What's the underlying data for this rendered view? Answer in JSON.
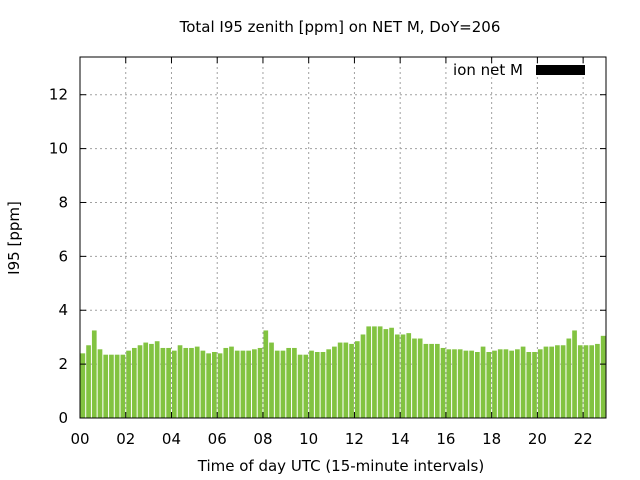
{
  "chart_data": {
    "type": "bar",
    "title": "Total I95 zenith [ppm] on NET M, DoY=206",
    "xlabel": "Time of day UTC (15-minute intervals)",
    "ylabel": "I95 [ppm]",
    "xlim": [
      0,
      22.75
    ],
    "ylim": [
      0,
      13.4
    ],
    "x_ticks": [
      0,
      2,
      4,
      6,
      8,
      10,
      12,
      14,
      16,
      18,
      20,
      22
    ],
    "x_tick_labels": [
      "00",
      "02",
      "04",
      "06",
      "08",
      "10",
      "12",
      "14",
      "16",
      "18",
      "20",
      "22"
    ],
    "y_ticks": [
      0,
      2,
      4,
      6,
      8,
      10,
      12
    ],
    "y_tick_labels": [
      "0",
      "2",
      "4",
      "6",
      "8",
      "10",
      "12"
    ],
    "grid": true,
    "legend_position": "top-right",
    "bar_color": "#82c341",
    "legend_color": "#000000",
    "series": [
      {
        "name": "ion net M",
        "x": [
          0,
          0.25,
          0.5,
          0.75,
          1,
          1.25,
          1.5,
          1.75,
          2,
          2.25,
          2.5,
          2.75,
          3,
          3.25,
          3.5,
          3.75,
          4,
          4.25,
          4.5,
          4.75,
          5,
          5.25,
          5.5,
          5.75,
          6,
          6.25,
          6.5,
          6.75,
          7,
          7.25,
          7.5,
          7.75,
          8,
          8.25,
          8.5,
          8.75,
          9,
          9.25,
          9.5,
          9.75,
          10,
          10.25,
          10.5,
          10.75,
          11,
          11.25,
          11.5,
          11.75,
          12,
          12.25,
          12.5,
          12.75,
          13,
          13.25,
          13.5,
          13.75,
          14,
          14.25,
          14.5,
          14.75,
          15,
          15.25,
          15.5,
          15.75,
          16,
          16.25,
          16.5,
          16.75,
          17,
          17.25,
          17.5,
          17.75,
          18,
          18.25,
          18.5,
          18.75,
          19,
          19.25,
          19.5,
          19.75,
          20,
          20.25,
          20.5,
          20.75,
          21,
          21.25,
          21.5,
          21.75,
          22,
          22.25,
          22.5,
          22.75
        ],
        "values": [
          2.4,
          2.7,
          3.25,
          2.55,
          2.35,
          2.35,
          2.35,
          2.35,
          2.5,
          2.6,
          2.7,
          2.8,
          2.75,
          2.85,
          2.6,
          2.6,
          2.5,
          2.7,
          2.6,
          2.6,
          2.65,
          2.5,
          2.4,
          2.45,
          2.4,
          2.6,
          2.65,
          2.5,
          2.5,
          2.5,
          2.55,
          2.6,
          3.25,
          2.8,
          2.5,
          2.5,
          2.6,
          2.6,
          2.35,
          2.35,
          2.5,
          2.45,
          2.45,
          2.55,
          2.65,
          2.8,
          2.8,
          2.75,
          2.85,
          3.1,
          3.4,
          3.4,
          3.4,
          3.3,
          3.35,
          3.1,
          3.1,
          3.15,
          2.95,
          2.95,
          2.75,
          2.75,
          2.75,
          2.6,
          2.55,
          2.55,
          2.55,
          2.5,
          2.5,
          2.45,
          2.65,
          2.45,
          2.5,
          2.55,
          2.55,
          2.5,
          2.55,
          2.65,
          2.45,
          2.45,
          2.55,
          2.65,
          2.65,
          2.7,
          2.7,
          2.95,
          3.25,
          2.7,
          2.7,
          2.7,
          2.75,
          3.05
        ]
      }
    ]
  }
}
